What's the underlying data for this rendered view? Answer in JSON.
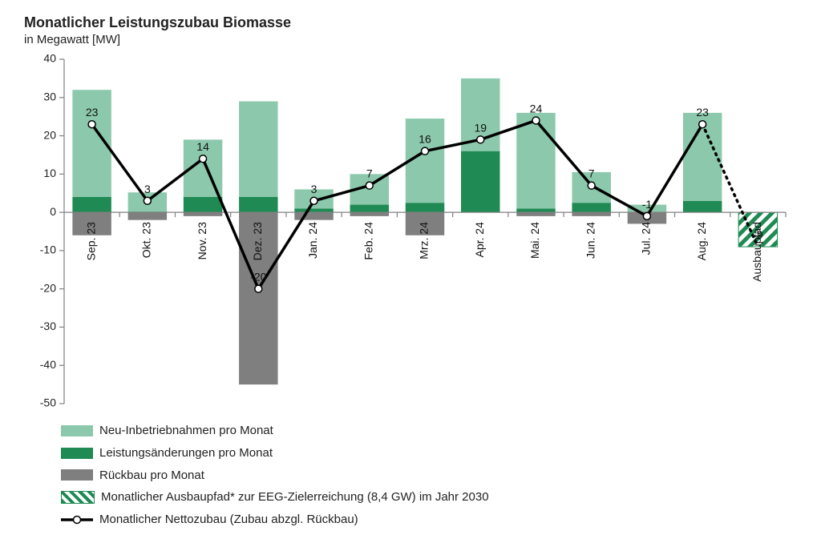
{
  "title": "Monatlicher Leistungszubau Biomasse",
  "subtitle": "in Megawatt [MW]",
  "chart": {
    "type": "bar+line",
    "background_color": "#ffffff",
    "axis_color": "#808080",
    "tick_color": "#808080",
    "ylim": [
      -50,
      40
    ],
    "ytick_step": 10,
    "categories": [
      "Sep. 23",
      "Okt. 23",
      "Nov. 23",
      "Dez. 23",
      "Jan. 24",
      "Feb. 24",
      "Mrz. 24",
      "Apr. 24",
      "Mai. 24",
      "Jun. 24",
      "Jul. 24",
      "Aug. 24",
      "Ausbaupfad"
    ],
    "series": {
      "neu": {
        "color": "#8cc9ac",
        "label": "Neu-Inbetriebnahmen pro Monat",
        "values": [
          28,
          5,
          15,
          25,
          5,
          8,
          22,
          19,
          25,
          8,
          2,
          23,
          null
        ]
      },
      "leist": {
        "color": "#1f8a53",
        "label": "Leistungsänderungen pro Monat",
        "values": [
          4,
          0.2,
          4,
          4,
          1,
          2,
          2.5,
          16,
          1,
          2.5,
          0,
          3,
          null
        ]
      },
      "rueckbau": {
        "color": "#7f7f7f",
        "label": "Rückbau pro Monat",
        "values": [
          -6,
          -2,
          -1,
          -45,
          -2,
          -1,
          -6,
          0,
          -1,
          -1,
          -3,
          0,
          null
        ]
      },
      "ausbaupfad": {
        "stripe_a": "#1f8a53",
        "stripe_b": "#ffffff",
        "label": "Monatlicher Ausbaupfad* zur EEG-Zielerreichung (8,4 GW) im Jahr 2030",
        "values": [
          null,
          null,
          null,
          null,
          null,
          null,
          null,
          null,
          null,
          null,
          null,
          null,
          -9
        ]
      },
      "netto": {
        "color": "#000000",
        "marker_fill": "#ffffff",
        "marker_stroke": "#000000",
        "label": "Monatlicher Nettozubau (Zubau abzgl. Rückbau)",
        "values": [
          23,
          3,
          14,
          -20,
          3,
          7,
          16,
          19,
          24,
          7,
          -1,
          23,
          -9
        ],
        "dash_from_index": 11,
        "line_width": 3.5,
        "marker_radius": 4.5
      }
    },
    "value_labels": [
      23,
      3,
      14,
      -20,
      3,
      7,
      16,
      19,
      24,
      7,
      -1,
      23,
      -9
    ],
    "bar_width_ratio": 0.7,
    "title_fontsize": 18,
    "label_fontsize": 14
  },
  "legend": {
    "items": [
      {
        "key": "neu",
        "type": "swatch"
      },
      {
        "key": "leist",
        "type": "swatch"
      },
      {
        "key": "rueckbau",
        "type": "swatch"
      },
      {
        "key": "ausbaupfad",
        "type": "hatch"
      },
      {
        "key": "netto",
        "type": "line"
      }
    ]
  }
}
